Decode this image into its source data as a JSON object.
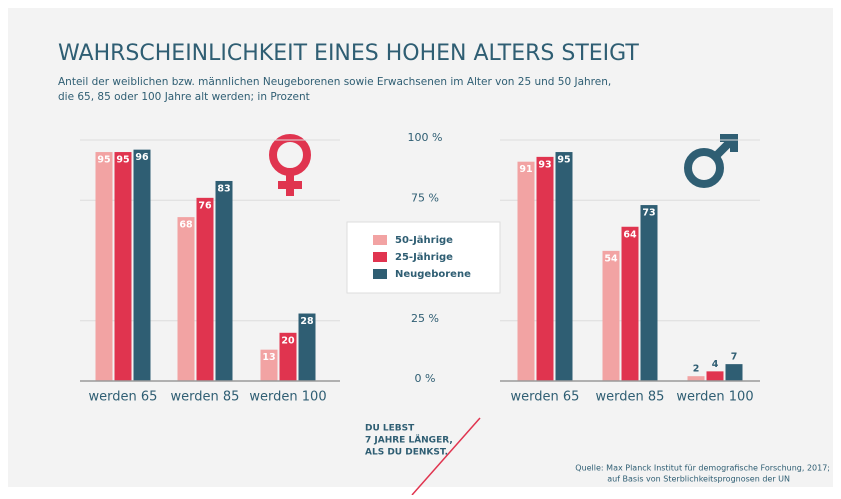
{
  "title": "WAHRSCHEINLICHKEIT EINES HOHEN ALTERS STEIGT",
  "subtitle": [
    "Anteil der weiblichen bzw. männlichen Neugeborenen sowie Erwachsenen im Alter von 25 und 50 Jahren,",
    "die 65, 85 oder 100 Jahre alt werden; in Prozent"
  ],
  "callout": [
    "DU LEBST",
    "7 JAHRE LÄNGER,",
    "ALS DU DENKST."
  ],
  "source": [
    "Quelle: Max Planck Institut für demografische Forschung, 2017;",
    "auf Basis von Sterblichkeitsprognosen der UN"
  ],
  "chart_data": [
    {
      "type": "bar",
      "categories": [
        "werden 65",
        "werden 85",
        "werden 100"
      ],
      "series": [
        {
          "name": "50-Jährige",
          "color": "#f2a3a3",
          "values": [
            95,
            68,
            13
          ]
        },
        {
          "name": "25-Jährige",
          "color": "#e0344f",
          "values": [
            95,
            76,
            20
          ]
        },
        {
          "name": "Neugeborene",
          "color": "#2f5e73",
          "values": [
            96,
            83,
            28
          ]
        }
      ],
      "ylim": [
        0,
        100
      ],
      "yticks": [
        {
          "value": 100,
          "label": "100 %"
        },
        {
          "value": 75,
          "label": "75 %"
        },
        {
          "value": 25,
          "label": "25 %"
        },
        {
          "value": 0,
          "label": "0 %"
        }
      ]
    },
    {
      "type": "bar",
      "categories": [
        "werden 65",
        "werden 85",
        "werden 100"
      ],
      "series": [
        {
          "name": "50-Jährige",
          "color": "#f2a3a3",
          "values": [
            91,
            54,
            2
          ]
        },
        {
          "name": "25-Jährige",
          "color": "#e0344f",
          "values": [
            93,
            64,
            4
          ]
        },
        {
          "name": "Neugeborene",
          "color": "#2f5e73",
          "values": [
            95,
            73,
            7
          ]
        }
      ],
      "ylim": [
        0,
        100
      ]
    }
  ]
}
